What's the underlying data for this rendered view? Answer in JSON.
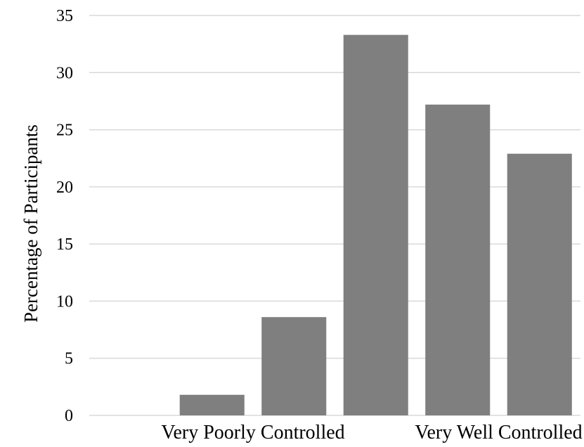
{
  "chart_data": {
    "type": "bar",
    "categories": [
      "",
      "",
      "",
      "",
      "",
      ""
    ],
    "values": [
      0,
      1.8,
      8.6,
      33.3,
      27.2,
      22.9
    ],
    "category_labels": [
      {
        "text": "Very Poorly Controlled",
        "at_category_index": 1.5
      },
      {
        "text": "Very Well Controlled",
        "at_category_index": 4.5
      }
    ],
    "ylabel": "Percentage of Participants",
    "xlabel": "",
    "title": "",
    "ylim": [
      0,
      35
    ],
    "yticks": [
      0,
      5,
      10,
      15,
      20,
      25,
      30,
      35
    ],
    "grid": true,
    "legend": "none",
    "colors": {
      "bar": "#7f7f7f",
      "gridline": "#d9d9d9"
    }
  }
}
